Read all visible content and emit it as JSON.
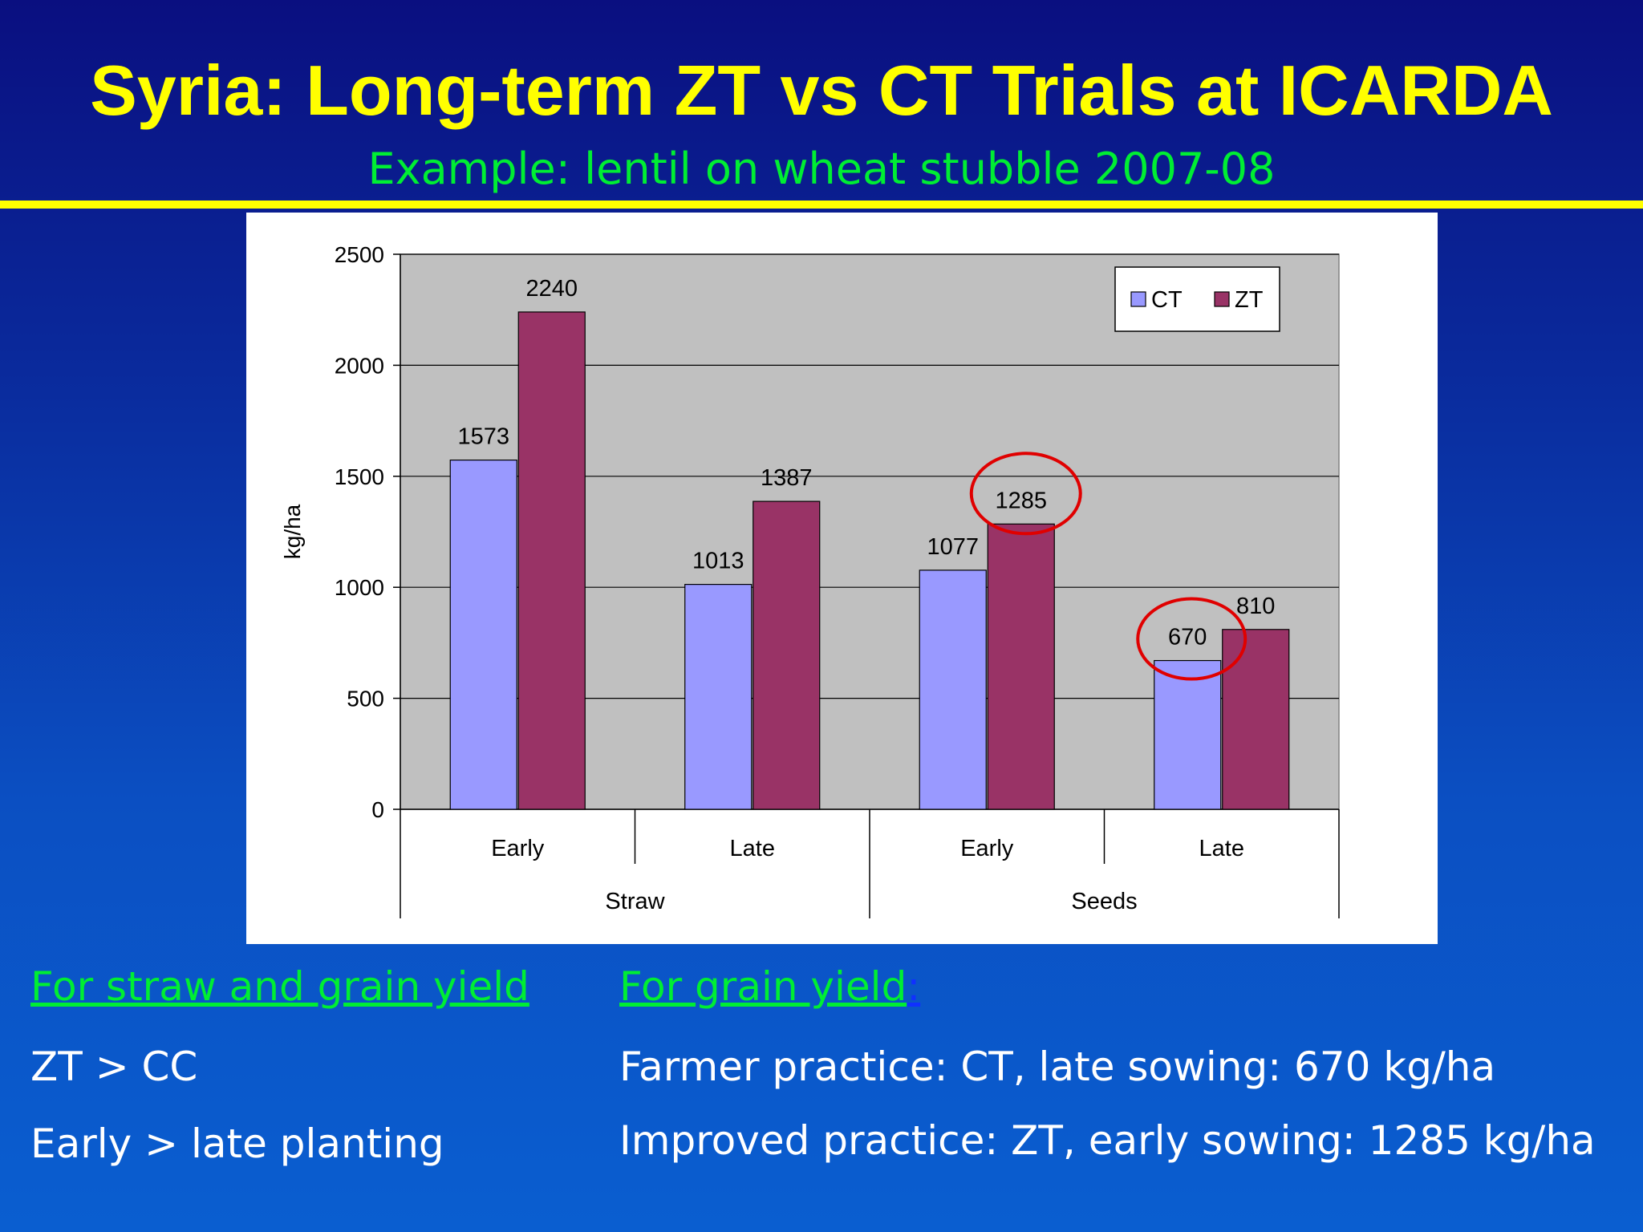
{
  "slide": {
    "title": "Syria: Long-term ZT vs CT Trials at ICARDA",
    "subtitle": "Example: lentil on wheat stubble 2007-08"
  },
  "chart_data": {
    "type": "bar",
    "ylabel": "kg/ha",
    "ylim": [
      0,
      2500
    ],
    "yticks": [
      "0",
      "500",
      "1000",
      "1500",
      "2000",
      "2500"
    ],
    "categories": [
      "Early",
      "Late",
      "Early",
      "Late"
    ],
    "groups": [
      {
        "label": "Straw",
        "categories": [
          "Early",
          "Late"
        ]
      },
      {
        "label": "Seeds",
        "categories": [
          "Early",
          "Late"
        ]
      }
    ],
    "series": [
      {
        "name": "CT",
        "color": "#9999ff",
        "values": [
          1573,
          1013,
          1077,
          670
        ],
        "labels": [
          "1573",
          "1013",
          "1077",
          "670"
        ]
      },
      {
        "name": "ZT",
        "color": "#993366",
        "values": [
          2240,
          1387,
          1285,
          810
        ],
        "labels": [
          "2240",
          "1387",
          "1285",
          "810"
        ]
      }
    ],
    "legend": "top-right",
    "grid": true,
    "plot_background": "#c0c0c0",
    "highlight_circles": [
      "ZT Seeds Early (1285)",
      "CT Seeds Late (670)"
    ],
    "highlight_color": "#e00000"
  },
  "notes": {
    "left_heading": "For straw and grain yield",
    "left_line1": "ZT  > CC",
    "left_line2": "Early > late planting",
    "right_heading": "For grain yield",
    "right_heading_suffix": ":",
    "right_line1": "Farmer practice: CT, late sowing: 670 kg/ha",
    "right_line2": "Improved practice:  ZT, early sowing: 1285 kg/ha"
  },
  "colors": {
    "title": "#ffff00",
    "subtitle": "#00ee33",
    "text": "#ffffff"
  }
}
